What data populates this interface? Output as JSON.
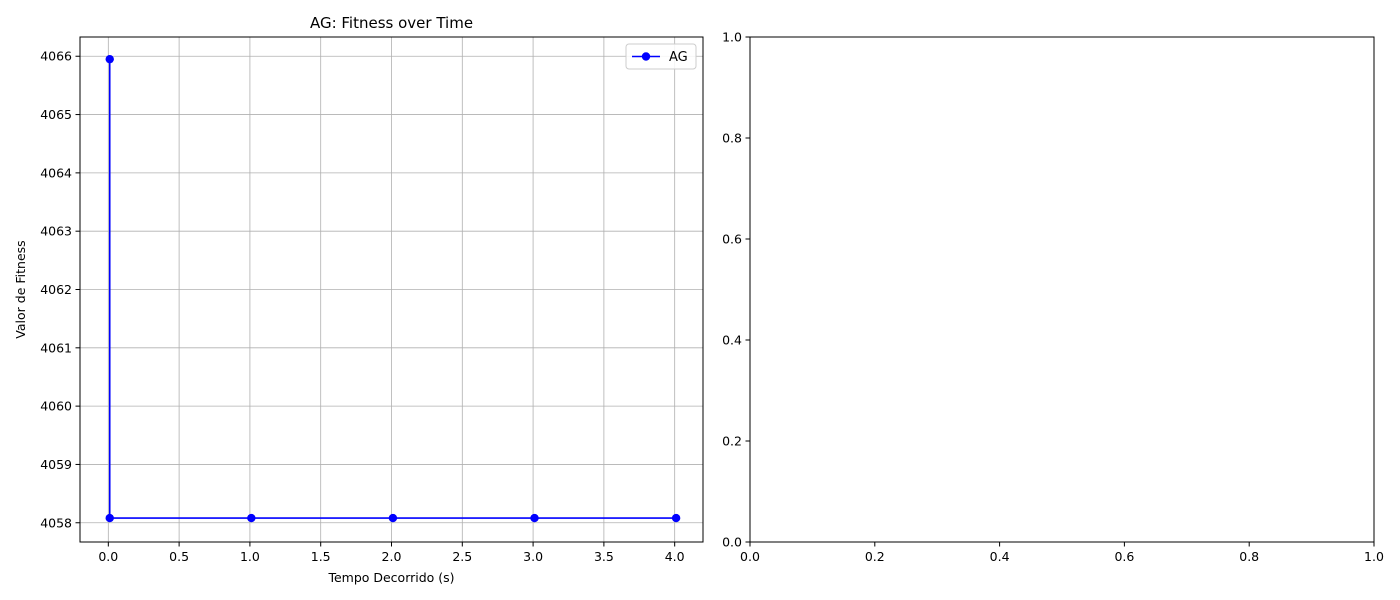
{
  "chart_data": [
    {
      "type": "line",
      "title": "AG: Fitness over Time",
      "xlabel": "Tempo Decorrido (s)",
      "ylabel": "Valor de Fitness",
      "xlim": [
        -0.2,
        4.2
      ],
      "ylim": [
        4057.67,
        4066.33
      ],
      "xticks": [
        0.0,
        0.5,
        1.0,
        1.5,
        2.0,
        2.5,
        3.0,
        3.5,
        4.0
      ],
      "xtick_labels": [
        "0.0",
        "0.5",
        "1.0",
        "1.5",
        "2.0",
        "2.5",
        "3.0",
        "3.5",
        "4.0"
      ],
      "yticks": [
        4058,
        4059,
        4060,
        4061,
        4062,
        4063,
        4064,
        4065,
        4066
      ],
      "ytick_labels": [
        "4058",
        "4059",
        "4060",
        "4061",
        "4062",
        "4063",
        "4064",
        "4065",
        "4066"
      ],
      "grid": true,
      "legend_position": "top-right",
      "series": [
        {
          "name": "AG",
          "color": "#0000ff",
          "marker": "circle",
          "x": [
            0.01,
            0.01,
            1.01,
            2.01,
            3.01,
            4.01
          ],
          "y": [
            4065.95,
            4058.08,
            4058.08,
            4058.08,
            4058.08,
            4058.08
          ]
        }
      ]
    },
    {
      "type": "line",
      "title": "",
      "xlabel": "",
      "ylabel": "",
      "xlim": [
        0.0,
        1.0
      ],
      "ylim": [
        0.0,
        1.0
      ],
      "xticks": [
        0.0,
        0.2,
        0.4,
        0.6,
        0.8,
        1.0
      ],
      "xtick_labels": [
        "0.0",
        "0.2",
        "0.4",
        "0.6",
        "0.8",
        "1.0"
      ],
      "yticks": [
        0.0,
        0.2,
        0.4,
        0.6,
        0.8,
        1.0
      ],
      "ytick_labels": [
        "0.0",
        "0.2",
        "0.4",
        "0.6",
        "0.8",
        "1.0"
      ],
      "grid": false,
      "series": []
    }
  ]
}
